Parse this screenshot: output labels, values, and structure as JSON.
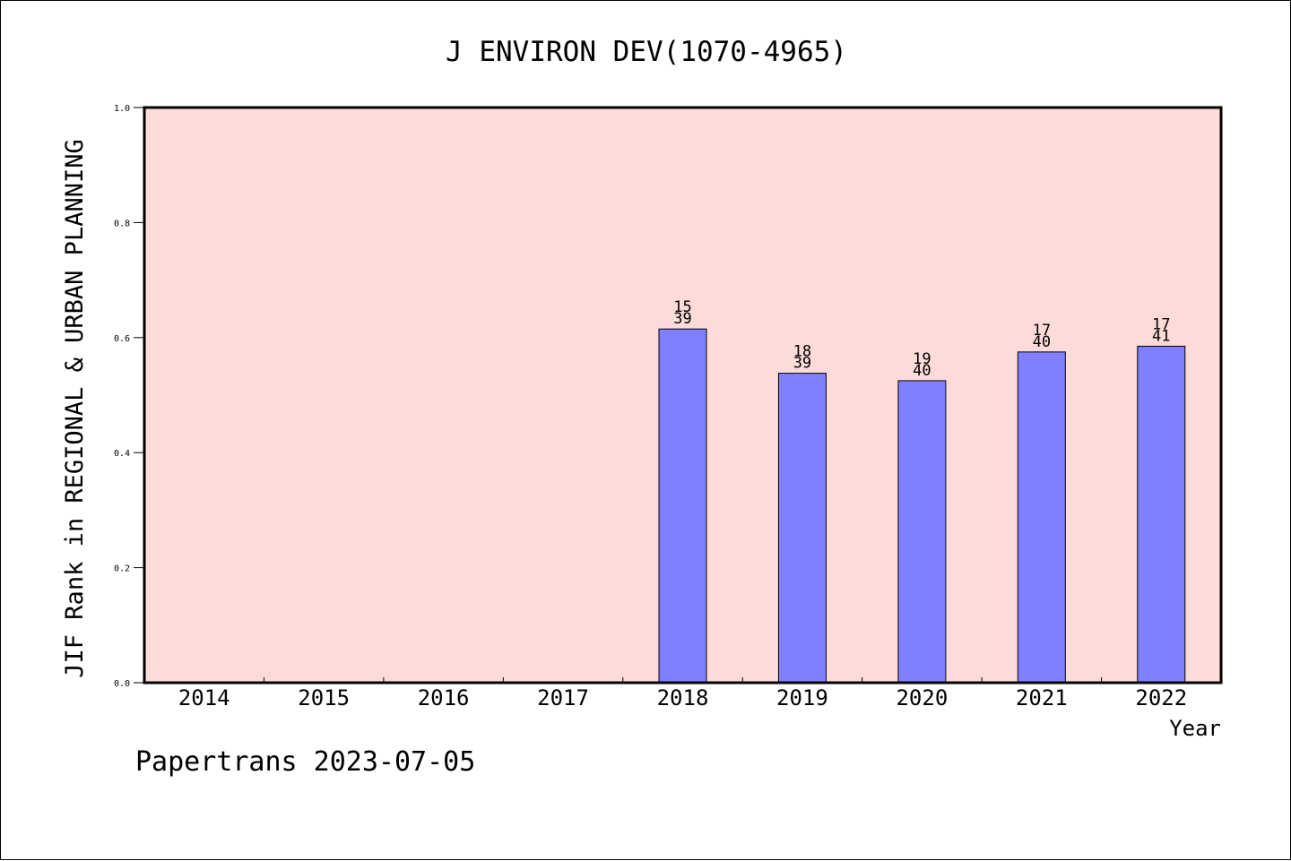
{
  "footer": "Papertrans 2023-07-05",
  "colors": {
    "plot_background": "#fddbd8",
    "bar_fill": "#8080ff",
    "axis": "#000000"
  },
  "chart_data": {
    "type": "bar",
    "title": "J ENVIRON DEV(1070-4965)",
    "xlabel": "Year",
    "ylabel": "JIF Rank in REGIONAL & URBAN PLANNING",
    "categories": [
      "2014",
      "2015",
      "2016",
      "2017",
      "2018",
      "2019",
      "2020",
      "2021",
      "2022"
    ],
    "values": [
      null,
      null,
      null,
      null,
      0.615,
      0.538,
      0.525,
      0.575,
      0.585
    ],
    "bar_labels": [
      null,
      null,
      null,
      null,
      {
        "rank": "15",
        "total": "39"
      },
      {
        "rank": "18",
        "total": "39"
      },
      {
        "rank": "19",
        "total": "40"
      },
      {
        "rank": "17",
        "total": "40"
      },
      {
        "rank": "17",
        "total": "41"
      }
    ],
    "ylim": [
      0,
      1.0
    ],
    "yticks": [
      "0.0",
      "0.2",
      "0.4",
      "0.6",
      "0.8",
      "1.0"
    ],
    "grid": false,
    "legend": "none"
  }
}
